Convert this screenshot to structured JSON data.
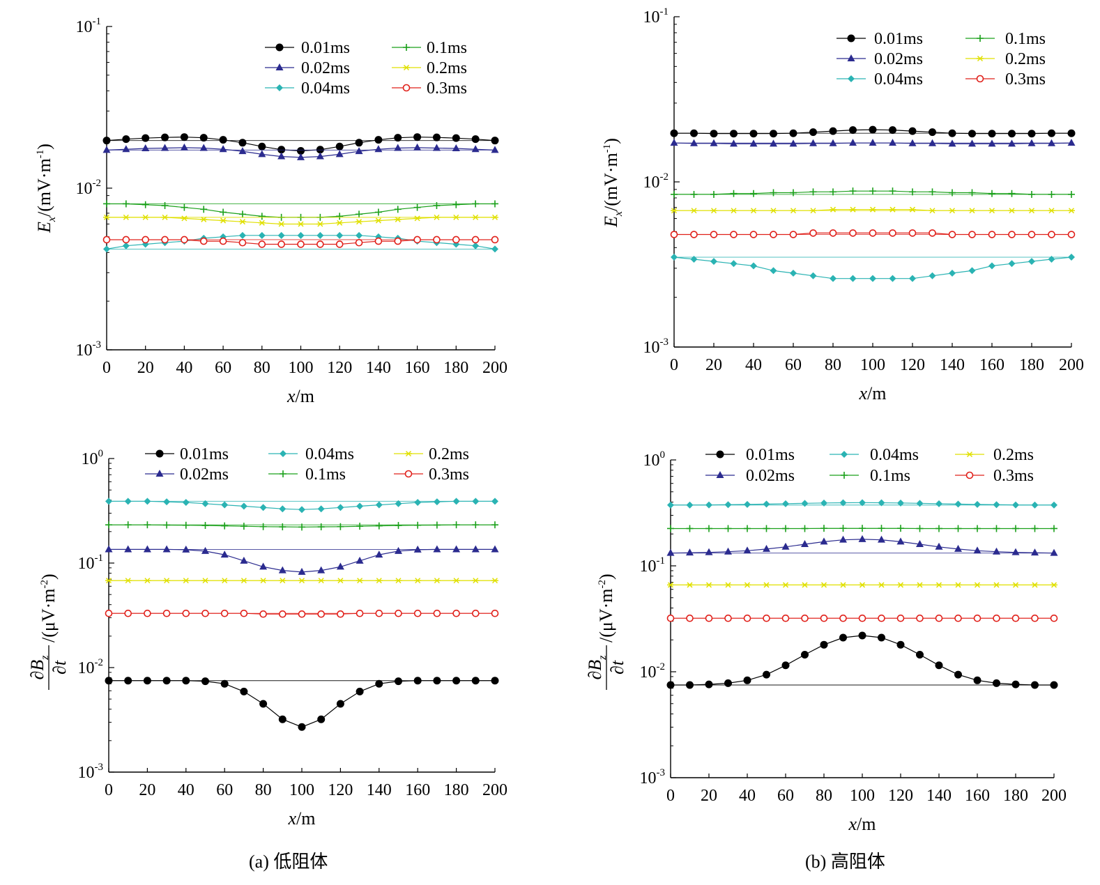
{
  "captions": {
    "a": "(a) 低阻体",
    "b": "(b) 高阻体"
  },
  "axes": {
    "x_label_var": "x",
    "x_label_unit": "/m",
    "ex_label_var": "E",
    "ex_label_sub": "x",
    "ex_label_unit": "/(mV·m",
    "ex_label_exp": "-1",
    "ex_label_close": ")",
    "bz_label_num": "∂B",
    "bz_label_num_sub": "z",
    "bz_label_den": "∂t",
    "bz_label_unit": "/(μV·m",
    "bz_label_exp": "-2",
    "bz_label_close": ")"
  },
  "series_styles": [
    {
      "name": "0.01ms",
      "color": "#000000",
      "marker": "filled-circle"
    },
    {
      "name": "0.02ms",
      "color": "#2b2b8f",
      "marker": "filled-triangle"
    },
    {
      "name": "0.04ms",
      "color": "#2ab3b3",
      "marker": "filled-diamond"
    },
    {
      "name": "0.1ms",
      "color": "#1aa01a",
      "marker": "plus"
    },
    {
      "name": "0.2ms",
      "color": "#e0e000",
      "marker": "asterisk"
    },
    {
      "name": "0.3ms",
      "color": "#e0201a",
      "marker": "open-circle"
    }
  ],
  "chart_data": [
    {
      "id": "a-top",
      "type": "line",
      "panel": "(a) 低阻体",
      "xlabel": "x/m",
      "ylabel": "Ex/(mV·m-1)",
      "xlim": [
        0,
        200
      ],
      "ylim": [
        0.001,
        0.1
      ],
      "yscale": "log",
      "xticks": [
        0,
        20,
        40,
        60,
        80,
        100,
        120,
        140,
        160,
        180,
        200
      ],
      "yticks": [
        {
          "base": "10",
          "exp": "-3",
          "value": 0.001
        },
        {
          "base": "10",
          "exp": "-2",
          "value": 0.01
        },
        {
          "base": "10",
          "exp": "-1",
          "value": 0.1
        }
      ],
      "legend": "top-right",
      "x": [
        0,
        10,
        20,
        30,
        40,
        50,
        60,
        70,
        80,
        90,
        100,
        110,
        120,
        130,
        140,
        150,
        160,
        170,
        180,
        190,
        200
      ],
      "series": [
        {
          "name": "0.01ms",
          "reference": 0.0197,
          "values": [
            0.0197,
            0.0201,
            0.0204,
            0.0206,
            0.0207,
            0.0205,
            0.0199,
            0.0191,
            0.0181,
            0.0173,
            0.017,
            0.0173,
            0.0181,
            0.0191,
            0.0199,
            0.0205,
            0.0207,
            0.0206,
            0.0204,
            0.0201,
            0.0197
          ]
        },
        {
          "name": "0.02ms",
          "reference": 0.0172,
          "values": [
            0.0172,
            0.0174,
            0.0176,
            0.0177,
            0.0178,
            0.0177,
            0.0174,
            0.0169,
            0.0162,
            0.0157,
            0.0155,
            0.0157,
            0.0162,
            0.0169,
            0.0174,
            0.0177,
            0.0178,
            0.0177,
            0.0176,
            0.0174,
            0.0172
          ]
        },
        {
          "name": "0.04ms",
          "reference": 0.0042,
          "values": [
            0.0042,
            0.0044,
            0.0045,
            0.0046,
            0.0047,
            0.0049,
            0.005,
            0.0051,
            0.0051,
            0.0051,
            0.0051,
            0.0051,
            0.0051,
            0.0051,
            0.005,
            0.0049,
            0.0047,
            0.0046,
            0.0045,
            0.0044,
            0.0042
          ]
        },
        {
          "name": "0.1ms",
          "reference": 0.008,
          "values": [
            0.008,
            0.008,
            0.0079,
            0.0078,
            0.0076,
            0.0074,
            0.0071,
            0.0069,
            0.0067,
            0.0066,
            0.0066,
            0.0066,
            0.0067,
            0.0069,
            0.0071,
            0.0074,
            0.0076,
            0.0078,
            0.0079,
            0.008,
            0.008
          ]
        },
        {
          "name": "0.2ms",
          "reference": 0.0066,
          "values": [
            0.0066,
            0.0066,
            0.0066,
            0.0066,
            0.0065,
            0.0064,
            0.0063,
            0.0062,
            0.0061,
            0.006,
            0.006,
            0.006,
            0.0061,
            0.0062,
            0.0063,
            0.0064,
            0.0065,
            0.0066,
            0.0066,
            0.0066,
            0.0066
          ]
        },
        {
          "name": "0.3ms",
          "reference": 0.0048,
          "values": [
            0.0048,
            0.0048,
            0.0048,
            0.0048,
            0.0048,
            0.0047,
            0.0047,
            0.0046,
            0.0045,
            0.0045,
            0.0045,
            0.0045,
            0.0045,
            0.0046,
            0.0047,
            0.0047,
            0.0048,
            0.0048,
            0.0048,
            0.0048,
            0.0048
          ]
        }
      ]
    },
    {
      "id": "b-top",
      "type": "line",
      "panel": "(b) 高阻体",
      "xlabel": "x/m",
      "ylabel": "Ex/(mV·m-1)",
      "xlim": [
        0,
        200
      ],
      "ylim": [
        0.001,
        0.1
      ],
      "yscale": "log",
      "xticks": [
        0,
        20,
        40,
        60,
        80,
        100,
        120,
        140,
        160,
        180,
        200
      ],
      "yticks": [
        {
          "base": "10",
          "exp": "-3",
          "value": 0.001
        },
        {
          "base": "10",
          "exp": "-2",
          "value": 0.01
        },
        {
          "base": "10",
          "exp": "-1",
          "value": 0.1
        }
      ],
      "legend": "top-right",
      "x": [
        0,
        10,
        20,
        30,
        40,
        50,
        60,
        70,
        80,
        90,
        100,
        110,
        120,
        130,
        140,
        150,
        160,
        170,
        180,
        190,
        200
      ],
      "series": [
        {
          "name": "0.01ms",
          "reference": 0.0197,
          "values": [
            0.0197,
            0.0197,
            0.0196,
            0.0196,
            0.0196,
            0.0196,
            0.0197,
            0.02,
            0.0203,
            0.0206,
            0.0207,
            0.0206,
            0.0203,
            0.02,
            0.0197,
            0.0196,
            0.0196,
            0.0196,
            0.0196,
            0.0197,
            0.0197
          ]
        },
        {
          "name": "0.02ms",
          "reference": 0.0172,
          "values": [
            0.0172,
            0.0171,
            0.0171,
            0.017,
            0.017,
            0.017,
            0.017,
            0.0171,
            0.0171,
            0.0172,
            0.0172,
            0.0172,
            0.0171,
            0.0171,
            0.017,
            0.017,
            0.017,
            0.017,
            0.0171,
            0.0171,
            0.0172
          ]
        },
        {
          "name": "0.04ms",
          "reference": 0.0035,
          "values": [
            0.0035,
            0.0034,
            0.0033,
            0.0032,
            0.0031,
            0.0029,
            0.0028,
            0.0027,
            0.0026,
            0.0026,
            0.0026,
            0.0026,
            0.0026,
            0.0027,
            0.0028,
            0.0029,
            0.0031,
            0.0032,
            0.0033,
            0.0034,
            0.0035
          ]
        },
        {
          "name": "0.1ms",
          "reference": 0.0084,
          "values": [
            0.0084,
            0.0084,
            0.0084,
            0.0085,
            0.0085,
            0.0086,
            0.0086,
            0.0087,
            0.0087,
            0.0088,
            0.0088,
            0.0088,
            0.0087,
            0.0087,
            0.0086,
            0.0086,
            0.0085,
            0.0085,
            0.0084,
            0.0084,
            0.0084
          ]
        },
        {
          "name": "0.2ms",
          "reference": 0.0067,
          "values": [
            0.0067,
            0.0067,
            0.0067,
            0.0067,
            0.0067,
            0.0067,
            0.0067,
            0.0067,
            0.0068,
            0.0068,
            0.0068,
            0.0068,
            0.0068,
            0.0067,
            0.0067,
            0.0067,
            0.0067,
            0.0067,
            0.0067,
            0.0067,
            0.0067
          ]
        },
        {
          "name": "0.3ms",
          "reference": 0.0048,
          "values": [
            0.0048,
            0.0048,
            0.0048,
            0.0048,
            0.0048,
            0.0048,
            0.0048,
            0.0049,
            0.0049,
            0.0049,
            0.0049,
            0.0049,
            0.0049,
            0.0049,
            0.0048,
            0.0048,
            0.0048,
            0.0048,
            0.0048,
            0.0048,
            0.0048
          ]
        }
      ]
    },
    {
      "id": "a-bottom",
      "type": "line",
      "panel": "(a) 低阻体",
      "xlabel": "x/m",
      "ylabel": "∂Bz/∂t/(μV·m-2)",
      "xlim": [
        0,
        200
      ],
      "ylim": [
        0.001,
        1
      ],
      "yscale": "log",
      "xticks": [
        0,
        20,
        40,
        60,
        80,
        100,
        120,
        140,
        160,
        180,
        200
      ],
      "yticks": [
        {
          "base": "10",
          "exp": "-3",
          "value": 0.001
        },
        {
          "base": "10",
          "exp": "-2",
          "value": 0.01
        },
        {
          "base": "10",
          "exp": "-1",
          "value": 0.1
        },
        {
          "base": "10",
          "exp": "0",
          "value": 1
        }
      ],
      "legend": "top",
      "x": [
        0,
        10,
        20,
        30,
        40,
        50,
        60,
        70,
        80,
        90,
        100,
        110,
        120,
        130,
        140,
        150,
        160,
        170,
        180,
        190,
        200
      ],
      "series": [
        {
          "name": "0.01ms",
          "reference": 0.0075,
          "values": [
            0.0075,
            0.0075,
            0.0075,
            0.0075,
            0.0075,
            0.0074,
            0.007,
            0.0059,
            0.0045,
            0.0032,
            0.0027,
            0.0032,
            0.0045,
            0.0059,
            0.007,
            0.0074,
            0.0075,
            0.0075,
            0.0075,
            0.0075,
            0.0075
          ]
        },
        {
          "name": "0.02ms",
          "reference": 0.135,
          "values": [
            0.135,
            0.135,
            0.135,
            0.135,
            0.134,
            0.13,
            0.12,
            0.105,
            0.092,
            0.085,
            0.082,
            0.085,
            0.092,
            0.105,
            0.12,
            0.13,
            0.134,
            0.135,
            0.135,
            0.135,
            0.135
          ]
        },
        {
          "name": "0.04ms",
          "reference": 0.39,
          "values": [
            0.39,
            0.39,
            0.39,
            0.385,
            0.38,
            0.37,
            0.36,
            0.35,
            0.34,
            0.33,
            0.325,
            0.33,
            0.34,
            0.35,
            0.36,
            0.37,
            0.38,
            0.385,
            0.39,
            0.39,
            0.39
          ]
        },
        {
          "name": "0.1ms",
          "reference": 0.232,
          "values": [
            0.232,
            0.232,
            0.232,
            0.231,
            0.23,
            0.229,
            0.227,
            0.225,
            0.223,
            0.222,
            0.221,
            0.222,
            0.223,
            0.225,
            0.227,
            0.229,
            0.23,
            0.231,
            0.232,
            0.232,
            0.232
          ]
        },
        {
          "name": "0.2ms",
          "reference": 0.068,
          "values": [
            0.068,
            0.068,
            0.068,
            0.068,
            0.068,
            0.068,
            0.068,
            0.068,
            0.068,
            0.068,
            0.068,
            0.068,
            0.068,
            0.068,
            0.068,
            0.068,
            0.068,
            0.068,
            0.068,
            0.068,
            0.068
          ]
        },
        {
          "name": "0.3ms",
          "reference": 0.033,
          "values": [
            0.033,
            0.033,
            0.033,
            0.033,
            0.033,
            0.033,
            0.033,
            0.033,
            0.0325,
            0.0325,
            0.0325,
            0.0325,
            0.0325,
            0.033,
            0.033,
            0.033,
            0.033,
            0.033,
            0.033,
            0.033,
            0.033
          ]
        }
      ]
    },
    {
      "id": "b-bottom",
      "type": "line",
      "panel": "(b) 高阻体",
      "xlabel": "x/m",
      "ylabel": "∂Bz/∂t/(μV·m-2)",
      "xlim": [
        0,
        200
      ],
      "ylim": [
        0.001,
        1
      ],
      "yscale": "log",
      "xticks": [
        0,
        20,
        40,
        60,
        80,
        100,
        120,
        140,
        160,
        180,
        200
      ],
      "yticks": [
        {
          "base": "10",
          "exp": "-3",
          "value": 0.001
        },
        {
          "base": "10",
          "exp": "-2",
          "value": 0.01
        },
        {
          "base": "10",
          "exp": "-1",
          "value": 0.1
        },
        {
          "base": "10",
          "exp": "0",
          "value": 1
        }
      ],
      "legend": "top",
      "x": [
        0,
        10,
        20,
        30,
        40,
        50,
        60,
        70,
        80,
        90,
        100,
        110,
        120,
        130,
        140,
        150,
        160,
        170,
        180,
        190,
        200
      ],
      "series": [
        {
          "name": "0.01ms",
          "reference": 0.0075,
          "values": [
            0.0075,
            0.0075,
            0.0076,
            0.0078,
            0.0083,
            0.0094,
            0.0115,
            0.0145,
            0.018,
            0.021,
            0.022,
            0.021,
            0.018,
            0.0145,
            0.0115,
            0.0094,
            0.0083,
            0.0078,
            0.0076,
            0.0075,
            0.0075
          ]
        },
        {
          "name": "0.02ms",
          "reference": 0.132,
          "values": [
            0.132,
            0.133,
            0.134,
            0.136,
            0.139,
            0.144,
            0.151,
            0.16,
            0.169,
            0.176,
            0.178,
            0.176,
            0.169,
            0.16,
            0.151,
            0.144,
            0.139,
            0.136,
            0.134,
            0.133,
            0.132
          ]
        },
        {
          "name": "0.04ms",
          "reference": 0.375,
          "values": [
            0.375,
            0.375,
            0.376,
            0.378,
            0.38,
            0.383,
            0.386,
            0.389,
            0.392,
            0.394,
            0.395,
            0.394,
            0.392,
            0.389,
            0.386,
            0.383,
            0.38,
            0.378,
            0.376,
            0.375,
            0.375
          ]
        },
        {
          "name": "0.1ms",
          "reference": 0.225,
          "values": [
            0.225,
            0.225,
            0.225,
            0.225,
            0.225,
            0.225,
            0.225,
            0.225,
            0.226,
            0.226,
            0.226,
            0.226,
            0.226,
            0.225,
            0.225,
            0.225,
            0.225,
            0.225,
            0.225,
            0.225,
            0.225
          ]
        },
        {
          "name": "0.2ms",
          "reference": 0.066,
          "values": [
            0.066,
            0.066,
            0.066,
            0.066,
            0.066,
            0.066,
            0.066,
            0.066,
            0.066,
            0.066,
            0.066,
            0.066,
            0.066,
            0.066,
            0.066,
            0.066,
            0.066,
            0.066,
            0.066,
            0.066,
            0.066
          ]
        },
        {
          "name": "0.3ms",
          "reference": 0.032,
          "values": [
            0.032,
            0.032,
            0.032,
            0.032,
            0.032,
            0.032,
            0.032,
            0.032,
            0.032,
            0.032,
            0.032,
            0.032,
            0.032,
            0.032,
            0.032,
            0.032,
            0.032,
            0.032,
            0.032,
            0.032,
            0.032
          ]
        }
      ]
    }
  ]
}
